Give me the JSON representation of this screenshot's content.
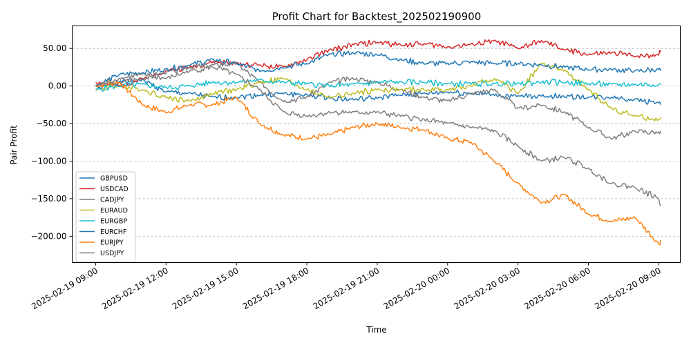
{
  "chart_data": {
    "type": "line",
    "title": "Profit Chart for Backtest_202502190900",
    "xlabel": "Time",
    "ylabel": "Pair Profit",
    "ylim": [
      -235,
      80
    ],
    "y_ticks": [
      50,
      0,
      -50,
      -100,
      -150,
      -200
    ],
    "y_tick_labels": [
      "50.00",
      "0.00",
      "−50.00",
      "−100.00",
      "−150.00",
      "−200.00"
    ],
    "x_range": [
      "2025-02-19 08:00",
      "2025-02-20 09:55"
    ],
    "x_ticks": [
      "2025-02-19 09:00",
      "2025-02-19 12:00",
      "2025-02-19 15:00",
      "2025-02-19 18:00",
      "2025-02-19 21:00",
      "2025-02-20 00:00",
      "2025-02-20 03:00",
      "2025-02-20 06:00",
      "2025-02-20 09:00"
    ],
    "x_tick_labels": [
      "2025-02-19 09:00",
      "2025-02-19 12:00",
      "2025-02-19 15:00",
      "2025-02-19 18:00",
      "2025-02-19 21:00",
      "2025-02-20 00:00",
      "2025-02-20 03:00",
      "2025-02-20 06:00",
      "2025-02-20 09:00"
    ],
    "grid": "horizontal dashed",
    "legend_position": "lower-left",
    "series": [
      {
        "name": "GBPUSD",
        "color": "#1f77b4",
        "x": [
          "2025-02-19 09:00",
          "2025-02-19 10:00",
          "2025-02-19 11:00",
          "2025-02-19 12:00",
          "2025-02-19 13:00",
          "2025-02-19 14:00",
          "2025-02-19 15:00",
          "2025-02-19 16:00",
          "2025-02-19 17:00",
          "2025-02-19 18:00",
          "2025-02-19 19:00",
          "2025-02-19 20:00",
          "2025-02-19 21:00",
          "2025-02-19 22:00",
          "2025-02-19 23:00",
          "2025-02-20 00:00",
          "2025-02-20 01:00",
          "2025-02-20 02:00",
          "2025-02-20 03:00",
          "2025-02-20 04:00",
          "2025-02-20 05:00",
          "2025-02-20 06:00",
          "2025-02-20 07:00",
          "2025-02-20 08:00",
          "2025-02-20 09:00",
          "2025-02-20 09:05"
        ],
        "y": [
          -5,
          5,
          8,
          -8,
          -10,
          -15,
          -15,
          -12,
          -10,
          -12,
          -16,
          -18,
          -16,
          -12,
          -10,
          -8,
          -10,
          -12,
          -14,
          -13,
          -14,
          -15,
          -15,
          -18,
          -22,
          -25
        ]
      },
      {
        "name": "USDCAD",
        "color": "#d62728",
        "x": [
          "2025-02-19 09:00",
          "2025-02-19 10:00",
          "2025-02-19 11:00",
          "2025-02-19 12:00",
          "2025-02-19 13:00",
          "2025-02-19 14:00",
          "2025-02-19 15:00",
          "2025-02-19 16:00",
          "2025-02-19 17:00",
          "2025-02-19 18:00",
          "2025-02-19 19:00",
          "2025-02-19 20:00",
          "2025-02-19 21:00",
          "2025-02-19 22:00",
          "2025-02-19 23:00",
          "2025-02-20 00:00",
          "2025-02-20 01:00",
          "2025-02-20 02:00",
          "2025-02-20 03:00",
          "2025-02-20 04:00",
          "2025-02-20 05:00",
          "2025-02-20 06:00",
          "2025-02-20 07:00",
          "2025-02-20 08:00",
          "2025-02-20 09:00",
          "2025-02-20 09:05"
        ],
        "y": [
          5,
          0,
          10,
          20,
          25,
          32,
          30,
          28,
          25,
          35,
          48,
          55,
          58,
          55,
          56,
          52,
          55,
          60,
          50,
          60,
          48,
          42,
          44,
          40,
          42,
          45
        ]
      },
      {
        "name": "CADJPY",
        "color": "#7f7f7f",
        "x": [
          "2025-02-19 09:00",
          "2025-02-19 10:00",
          "2025-02-19 11:00",
          "2025-02-19 12:00",
          "2025-02-19 13:00",
          "2025-02-19 14:00",
          "2025-02-19 15:00",
          "2025-02-19 16:00",
          "2025-02-19 17:00",
          "2025-02-19 18:00",
          "2025-02-19 19:00",
          "2025-02-19 20:00",
          "2025-02-19 21:00",
          "2025-02-19 22:00",
          "2025-02-19 23:00",
          "2025-02-20 00:00",
          "2025-02-20 01:00",
          "2025-02-20 02:00",
          "2025-02-20 03:00",
          "2025-02-20 04:00",
          "2025-02-20 05:00",
          "2025-02-20 06:00",
          "2025-02-20 07:00",
          "2025-02-20 08:00",
          "2025-02-20 09:00",
          "2025-02-20 09:05"
        ],
        "y": [
          0,
          5,
          10,
          18,
          25,
          28,
          30,
          5,
          -20,
          -15,
          5,
          10,
          5,
          -5,
          -15,
          -20,
          -10,
          -5,
          -30,
          -25,
          -35,
          -55,
          -70,
          -60,
          -62,
          -60
        ]
      },
      {
        "name": "EURAUD",
        "color": "#bcbd22",
        "x": [
          "2025-02-19 09:00",
          "2025-02-19 10:00",
          "2025-02-19 11:00",
          "2025-02-19 12:00",
          "2025-02-19 13:00",
          "2025-02-19 14:00",
          "2025-02-19 15:00",
          "2025-02-19 16:00",
          "2025-02-19 17:00",
          "2025-02-19 18:00",
          "2025-02-19 19:00",
          "2025-02-19 20:00",
          "2025-02-19 21:00",
          "2025-02-19 22:00",
          "2025-02-19 23:00",
          "2025-02-20 00:00",
          "2025-02-20 01:00",
          "2025-02-20 02:00",
          "2025-02-20 03:00",
          "2025-02-20 04:00",
          "2025-02-20 05:00",
          "2025-02-20 06:00",
          "2025-02-20 07:00",
          "2025-02-20 08:00",
          "2025-02-20 09:00",
          "2025-02-20 09:05"
        ],
        "y": [
          -5,
          0,
          -5,
          -15,
          -20,
          -10,
          -5,
          5,
          10,
          -5,
          -15,
          -10,
          -5,
          -5,
          -5,
          -5,
          0,
          10,
          -10,
          30,
          20,
          -5,
          -30,
          -40,
          -45,
          -42
        ]
      },
      {
        "name": "EURGBP",
        "color": "#17becf",
        "x": [
          "2025-02-19 09:00",
          "2025-02-19 10:00",
          "2025-02-19 11:00",
          "2025-02-19 12:00",
          "2025-02-19 13:00",
          "2025-02-19 14:00",
          "2025-02-19 15:00",
          "2025-02-19 16:00",
          "2025-02-19 17:00",
          "2025-02-19 18:00",
          "2025-02-19 19:00",
          "2025-02-19 20:00",
          "2025-02-19 21:00",
          "2025-02-19 22:00",
          "2025-02-19 23:00",
          "2025-02-20 00:00",
          "2025-02-20 01:00",
          "2025-02-20 02:00",
          "2025-02-20 03:00",
          "2025-02-20 04:00",
          "2025-02-20 05:00",
          "2025-02-20 06:00",
          "2025-02-20 07:00",
          "2025-02-20 08:00",
          "2025-02-20 09:00",
          "2025-02-20 09:05"
        ],
        "y": [
          -5,
          0,
          2,
          -2,
          0,
          5,
          5,
          8,
          5,
          3,
          0,
          2,
          5,
          5,
          5,
          3,
          3,
          3,
          3,
          5,
          5,
          3,
          2,
          2,
          2,
          2
        ]
      },
      {
        "name": "EURCHF",
        "color": "#1f77b4",
        "x": [
          "2025-02-19 09:00",
          "2025-02-19 10:00",
          "2025-02-19 11:00",
          "2025-02-19 12:00",
          "2025-02-19 13:00",
          "2025-02-19 14:00",
          "2025-02-19 15:00",
          "2025-02-19 16:00",
          "2025-02-19 17:00",
          "2025-02-19 18:00",
          "2025-02-19 19:00",
          "2025-02-19 20:00",
          "2025-02-19 21:00",
          "2025-02-19 22:00",
          "2025-02-19 23:00",
          "2025-02-20 00:00",
          "2025-02-20 01:00",
          "2025-02-20 02:00",
          "2025-02-20 03:00",
          "2025-02-20 04:00",
          "2025-02-20 05:00",
          "2025-02-20 06:00",
          "2025-02-20 07:00",
          "2025-02-20 08:00",
          "2025-02-20 09:00",
          "2025-02-20 09:05"
        ],
        "y": [
          0,
          15,
          18,
          22,
          28,
          35,
          30,
          20,
          25,
          30,
          42,
          44,
          42,
          35,
          30,
          30,
          32,
          30,
          30,
          28,
          25,
          22,
          22,
          20,
          22,
          20
        ]
      },
      {
        "name": "EURJPY",
        "color": "#ff7f0e",
        "x": [
          "2025-02-19 09:00",
          "2025-02-19 10:00",
          "2025-02-19 11:00",
          "2025-02-19 12:00",
          "2025-02-19 13:00",
          "2025-02-19 14:00",
          "2025-02-19 15:00",
          "2025-02-19 16:00",
          "2025-02-19 17:00",
          "2025-02-19 18:00",
          "2025-02-19 19:00",
          "2025-02-19 20:00",
          "2025-02-19 21:00",
          "2025-02-19 22:00",
          "2025-02-19 23:00",
          "2025-02-20 00:00",
          "2025-02-20 01:00",
          "2025-02-20 02:00",
          "2025-02-20 03:00",
          "2025-02-20 04:00",
          "2025-02-20 05:00",
          "2025-02-20 06:00",
          "2025-02-20 07:00",
          "2025-02-20 08:00",
          "2025-02-20 09:00",
          "2025-02-20 09:05"
        ],
        "y": [
          0,
          5,
          -25,
          -35,
          -25,
          -25,
          -15,
          -50,
          -65,
          -70,
          -65,
          -55,
          -50,
          -55,
          -58,
          -70,
          -75,
          -100,
          -130,
          -155,
          -145,
          -170,
          -180,
          -175,
          -210,
          -205
        ]
      },
      {
        "name": "USDJPY",
        "color": "#7f7f7f",
        "x": [
          "2025-02-19 09:00",
          "2025-02-19 10:00",
          "2025-02-19 11:00",
          "2025-02-19 12:00",
          "2025-02-19 13:00",
          "2025-02-19 14:00",
          "2025-02-19 15:00",
          "2025-02-19 16:00",
          "2025-02-19 17:00",
          "2025-02-19 18:00",
          "2025-02-19 19:00",
          "2025-02-19 20:00",
          "2025-02-19 21:00",
          "2025-02-19 22:00",
          "2025-02-19 23:00",
          "2025-02-20 00:00",
          "2025-02-20 01:00",
          "2025-02-20 02:00",
          "2025-02-20 03:00",
          "2025-02-20 04:00",
          "2025-02-20 05:00",
          "2025-02-20 06:00",
          "2025-02-20 07:00",
          "2025-02-20 08:00",
          "2025-02-20 09:00",
          "2025-02-20 09:05"
        ],
        "y": [
          0,
          10,
          15,
          10,
          20,
          25,
          15,
          -5,
          -35,
          -40,
          -35,
          -35,
          -35,
          -40,
          -45,
          -50,
          -55,
          -60,
          -80,
          -100,
          -95,
          -110,
          -130,
          -135,
          -150,
          -160
        ]
      }
    ]
  }
}
